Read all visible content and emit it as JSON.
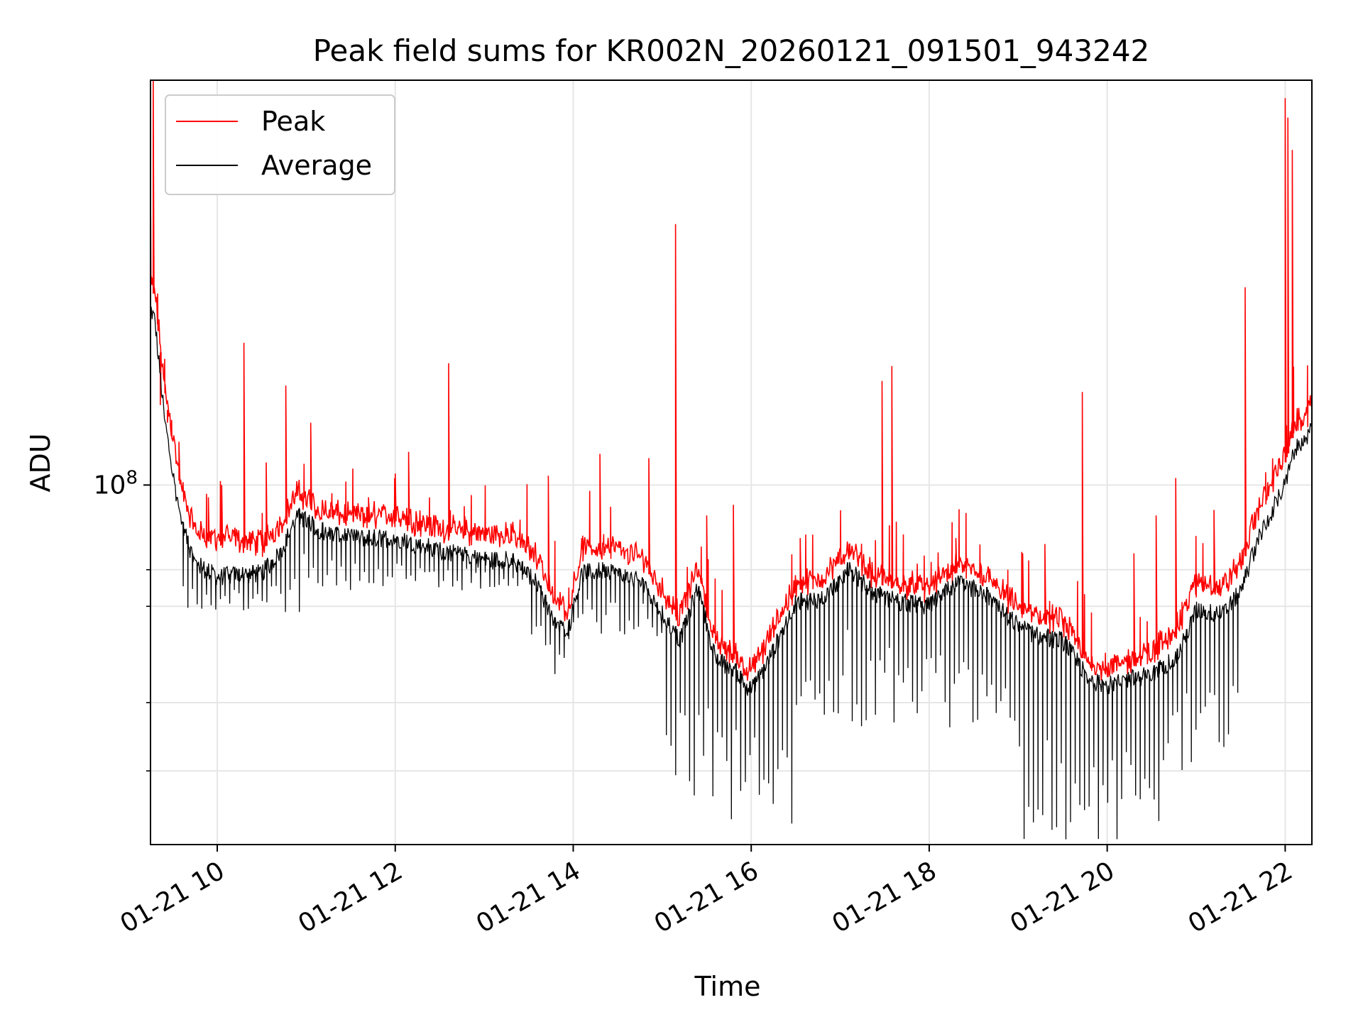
{
  "chart_data": {
    "type": "line",
    "title": "Peak field sums for KR002N_20260121_091501_943242",
    "xlabel": "Time",
    "ylabel": "ADU",
    "yscale": "log",
    "ylim": [
      22000000,
      550000000
    ],
    "xlim_hours": [
      9.25,
      22.3
    ],
    "xtick_hours": [
      10,
      12,
      14,
      16,
      18,
      20,
      22
    ],
    "xtick_labels": [
      "01-21 10",
      "01-21 12",
      "01-21 14",
      "01-21 16",
      "01-21 18",
      "01-21 20",
      "01-21 22"
    ],
    "ytick_major": [
      {
        "value": 100000000,
        "base": "10",
        "exponent": "8"
      }
    ],
    "ytick_minor": [
      30000000,
      40000000,
      60000000,
      70000000
    ],
    "grid": true,
    "legend_position": "upper-left",
    "legend": [
      {
        "name": "Peak",
        "color": "#ff0000"
      },
      {
        "name": "Average",
        "color": "#000000"
      }
    ],
    "series": [
      {
        "name": "Peak",
        "color": "#ff0000",
        "description": "per-frame peak field sum; closely tracks Average but ~5-15% higher with frequent sharp upward spikes",
        "baseline_hours": [
          9.25,
          9.3,
          9.4,
          9.5,
          9.6,
          9.75,
          10.0,
          10.5,
          10.7,
          10.9,
          11.2,
          11.5,
          12.0,
          12.5,
          13.0,
          13.3,
          13.6,
          13.8,
          13.95,
          14.1,
          14.4,
          14.8,
          15.0,
          15.2,
          15.4,
          15.6,
          15.8,
          16.0,
          16.2,
          16.5,
          16.8,
          17.1,
          17.4,
          17.7,
          18.0,
          18.3,
          18.6,
          18.9,
          19.2,
          19.5,
          19.8,
          20.0,
          20.2,
          20.5,
          20.8,
          21.0,
          21.3,
          21.5,
          21.7,
          21.9,
          22.0,
          22.1,
          22.3
        ],
        "baseline_values": [
          230000000.0,
          220000000.0,
          150000000.0,
          120000000.0,
          95000000.0,
          80000000.0,
          78000000.0,
          76000000.0,
          82000000.0,
          94000000.0,
          87000000.0,
          85000000.0,
          86000000.0,
          81000000.0,
          79000000.0,
          79000000.0,
          72000000.0,
          59000000.0,
          58000000.0,
          74000000.0,
          75000000.0,
          71000000.0,
          62000000.0,
          56000000.0,
          69000000.0,
          50000000.0,
          48000000.0,
          44000000.0,
          51000000.0,
          64000000.0,
          66000000.0,
          74000000.0,
          66000000.0,
          64000000.0,
          63000000.0,
          69000000.0,
          67000000.0,
          60000000.0,
          56000000.0,
          55000000.0,
          46000000.0,
          45000000.0,
          46000000.0,
          48000000.0,
          54000000.0,
          65000000.0,
          63000000.0,
          70000000.0,
          88000000.0,
          103000000.0,
          110000000.0,
          125000000.0,
          135000000.0
        ],
        "spikes": [
          {
            "hour": 9.28,
            "value": 550000000.0
          },
          {
            "hour": 9.36,
            "value": 140000000.0
          },
          {
            "hour": 9.44,
            "value": 130000000.0
          },
          {
            "hour": 9.57,
            "value": 120000000.0
          },
          {
            "hour": 9.9,
            "value": 95000000.0
          },
          {
            "hour": 10.05,
            "value": 100000000.0
          },
          {
            "hour": 10.3,
            "value": 182000000.0
          },
          {
            "hour": 10.55,
            "value": 110000000.0
          },
          {
            "hour": 10.77,
            "value": 152000000.0
          },
          {
            "hour": 11.05,
            "value": 130000000.0
          },
          {
            "hour": 11.7,
            "value": 95000000.0
          },
          {
            "hour": 12.0,
            "value": 105000000.0
          },
          {
            "hour": 12.15,
            "value": 115000000.0
          },
          {
            "hour": 12.6,
            "value": 167000000.0
          },
          {
            "hour": 13.3,
            "value": 85000000.0
          },
          {
            "hour": 13.72,
            "value": 104000000.0
          },
          {
            "hour": 14.3,
            "value": 114000000.0
          },
          {
            "hour": 14.85,
            "value": 112000000.0
          },
          {
            "hour": 15.15,
            "value": 300000000.0
          },
          {
            "hour": 15.5,
            "value": 88000000.0
          },
          {
            "hour": 15.8,
            "value": 92000000.0
          },
          {
            "hour": 16.55,
            "value": 80000000.0
          },
          {
            "hour": 17.1,
            "value": 78000000.0
          },
          {
            "hour": 17.47,
            "value": 155000000.0
          },
          {
            "hour": 17.58,
            "value": 165000000.0
          },
          {
            "hour": 18.3,
            "value": 80000000.0
          },
          {
            "hour": 19.05,
            "value": 75000000.0
          },
          {
            "hour": 19.3,
            "value": 78000000.0
          },
          {
            "hour": 19.72,
            "value": 148000000.0
          },
          {
            "hour": 20.3,
            "value": 75000000.0
          },
          {
            "hour": 20.55,
            "value": 88000000.0
          },
          {
            "hour": 20.77,
            "value": 103000000.0
          },
          {
            "hour": 21.2,
            "value": 90000000.0
          },
          {
            "hour": 21.55,
            "value": 230000000.0
          },
          {
            "hour": 22.0,
            "value": 510000000.0
          },
          {
            "hour": 22.03,
            "value": 470000000.0
          },
          {
            "hour": 22.08,
            "value": 410000000.0
          }
        ]
      },
      {
        "name": "Average",
        "color": "#000000",
        "description": "per-frame average field sum; slightly below Peak, with frequent deep downward dropouts",
        "baseline_hours": [
          9.25,
          9.3,
          9.4,
          9.5,
          9.6,
          9.75,
          10.0,
          10.5,
          10.7,
          10.9,
          11.2,
          11.5,
          12.0,
          12.5,
          13.0,
          13.3,
          13.6,
          13.8,
          13.95,
          14.1,
          14.4,
          14.8,
          15.0,
          15.2,
          15.4,
          15.6,
          15.8,
          16.0,
          16.2,
          16.5,
          16.8,
          17.1,
          17.4,
          17.7,
          18.0,
          18.3,
          18.6,
          18.9,
          19.2,
          19.5,
          19.8,
          20.0,
          20.2,
          20.5,
          20.8,
          21.0,
          21.3,
          21.5,
          21.7,
          21.9,
          22.0,
          22.1,
          22.3
        ],
        "baseline_values": [
          210000000.0,
          200000000.0,
          135000000.0,
          105000000.0,
          85000000.0,
          72000000.0,
          68000000.0,
          69000000.0,
          75000000.0,
          88000000.0,
          82000000.0,
          80000000.0,
          80000000.0,
          76000000.0,
          73000000.0,
          73000000.0,
          66000000.0,
          55000000.0,
          55000000.0,
          69000000.0,
          70000000.0,
          66000000.0,
          58000000.0,
          52000000.0,
          65000000.0,
          48000000.0,
          46000000.0,
          42000000.0,
          48000000.0,
          61000000.0,
          62000000.0,
          70000000.0,
          63000000.0,
          61000000.0,
          60000000.0,
          66000000.0,
          64000000.0,
          57000000.0,
          53000000.0,
          52000000.0,
          44000000.0,
          43000000.0,
          44000000.0,
          45000000.0,
          49000000.0,
          59000000.0,
          58000000.0,
          64000000.0,
          80000000.0,
          93000000.0,
          100000000.0,
          115000000.0,
          126000000.0
        ],
        "dip_floors": [
          {
            "from_hour": 9.6,
            "to_hour": 11.0,
            "value": 58000000.0
          },
          {
            "from_hour": 11.0,
            "to_hour": 13.5,
            "value": 64000000.0
          },
          {
            "from_hour": 13.5,
            "to_hour": 13.9,
            "value": 43000000.0
          },
          {
            "from_hour": 13.9,
            "to_hour": 15.0,
            "value": 52000000.0
          },
          {
            "from_hour": 15.0,
            "to_hour": 16.6,
            "value": 24000000.0
          },
          {
            "from_hour": 16.6,
            "to_hour": 19.0,
            "value": 36000000.0
          },
          {
            "from_hour": 19.0,
            "to_hour": 20.6,
            "value": 22000000.0
          },
          {
            "from_hour": 20.6,
            "to_hour": 21.5,
            "value": 30000000.0
          }
        ]
      }
    ]
  }
}
